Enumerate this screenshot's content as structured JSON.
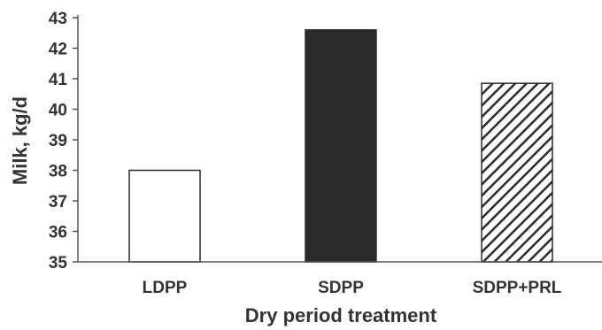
{
  "chart_data": {
    "type": "bar",
    "categories": [
      "LDPP",
      "SDPP",
      "SDPP+PRL"
    ],
    "values": [
      38.0,
      42.6,
      40.85
    ],
    "fills": [
      "white",
      "solid",
      "hatched"
    ],
    "ylabel": "Milk, kg/d",
    "xlabel": "Dry period treatment",
    "ylim": [
      35,
      43
    ],
    "yticks": [
      35,
      36,
      37,
      38,
      39,
      40,
      41,
      42,
      43
    ],
    "grid": false,
    "legend": "none",
    "colors": {
      "solid": "#2b2b2b",
      "outline": "#2b2b2b",
      "axis": "#555555",
      "text": "#333333",
      "background": "#ffffff"
    }
  }
}
